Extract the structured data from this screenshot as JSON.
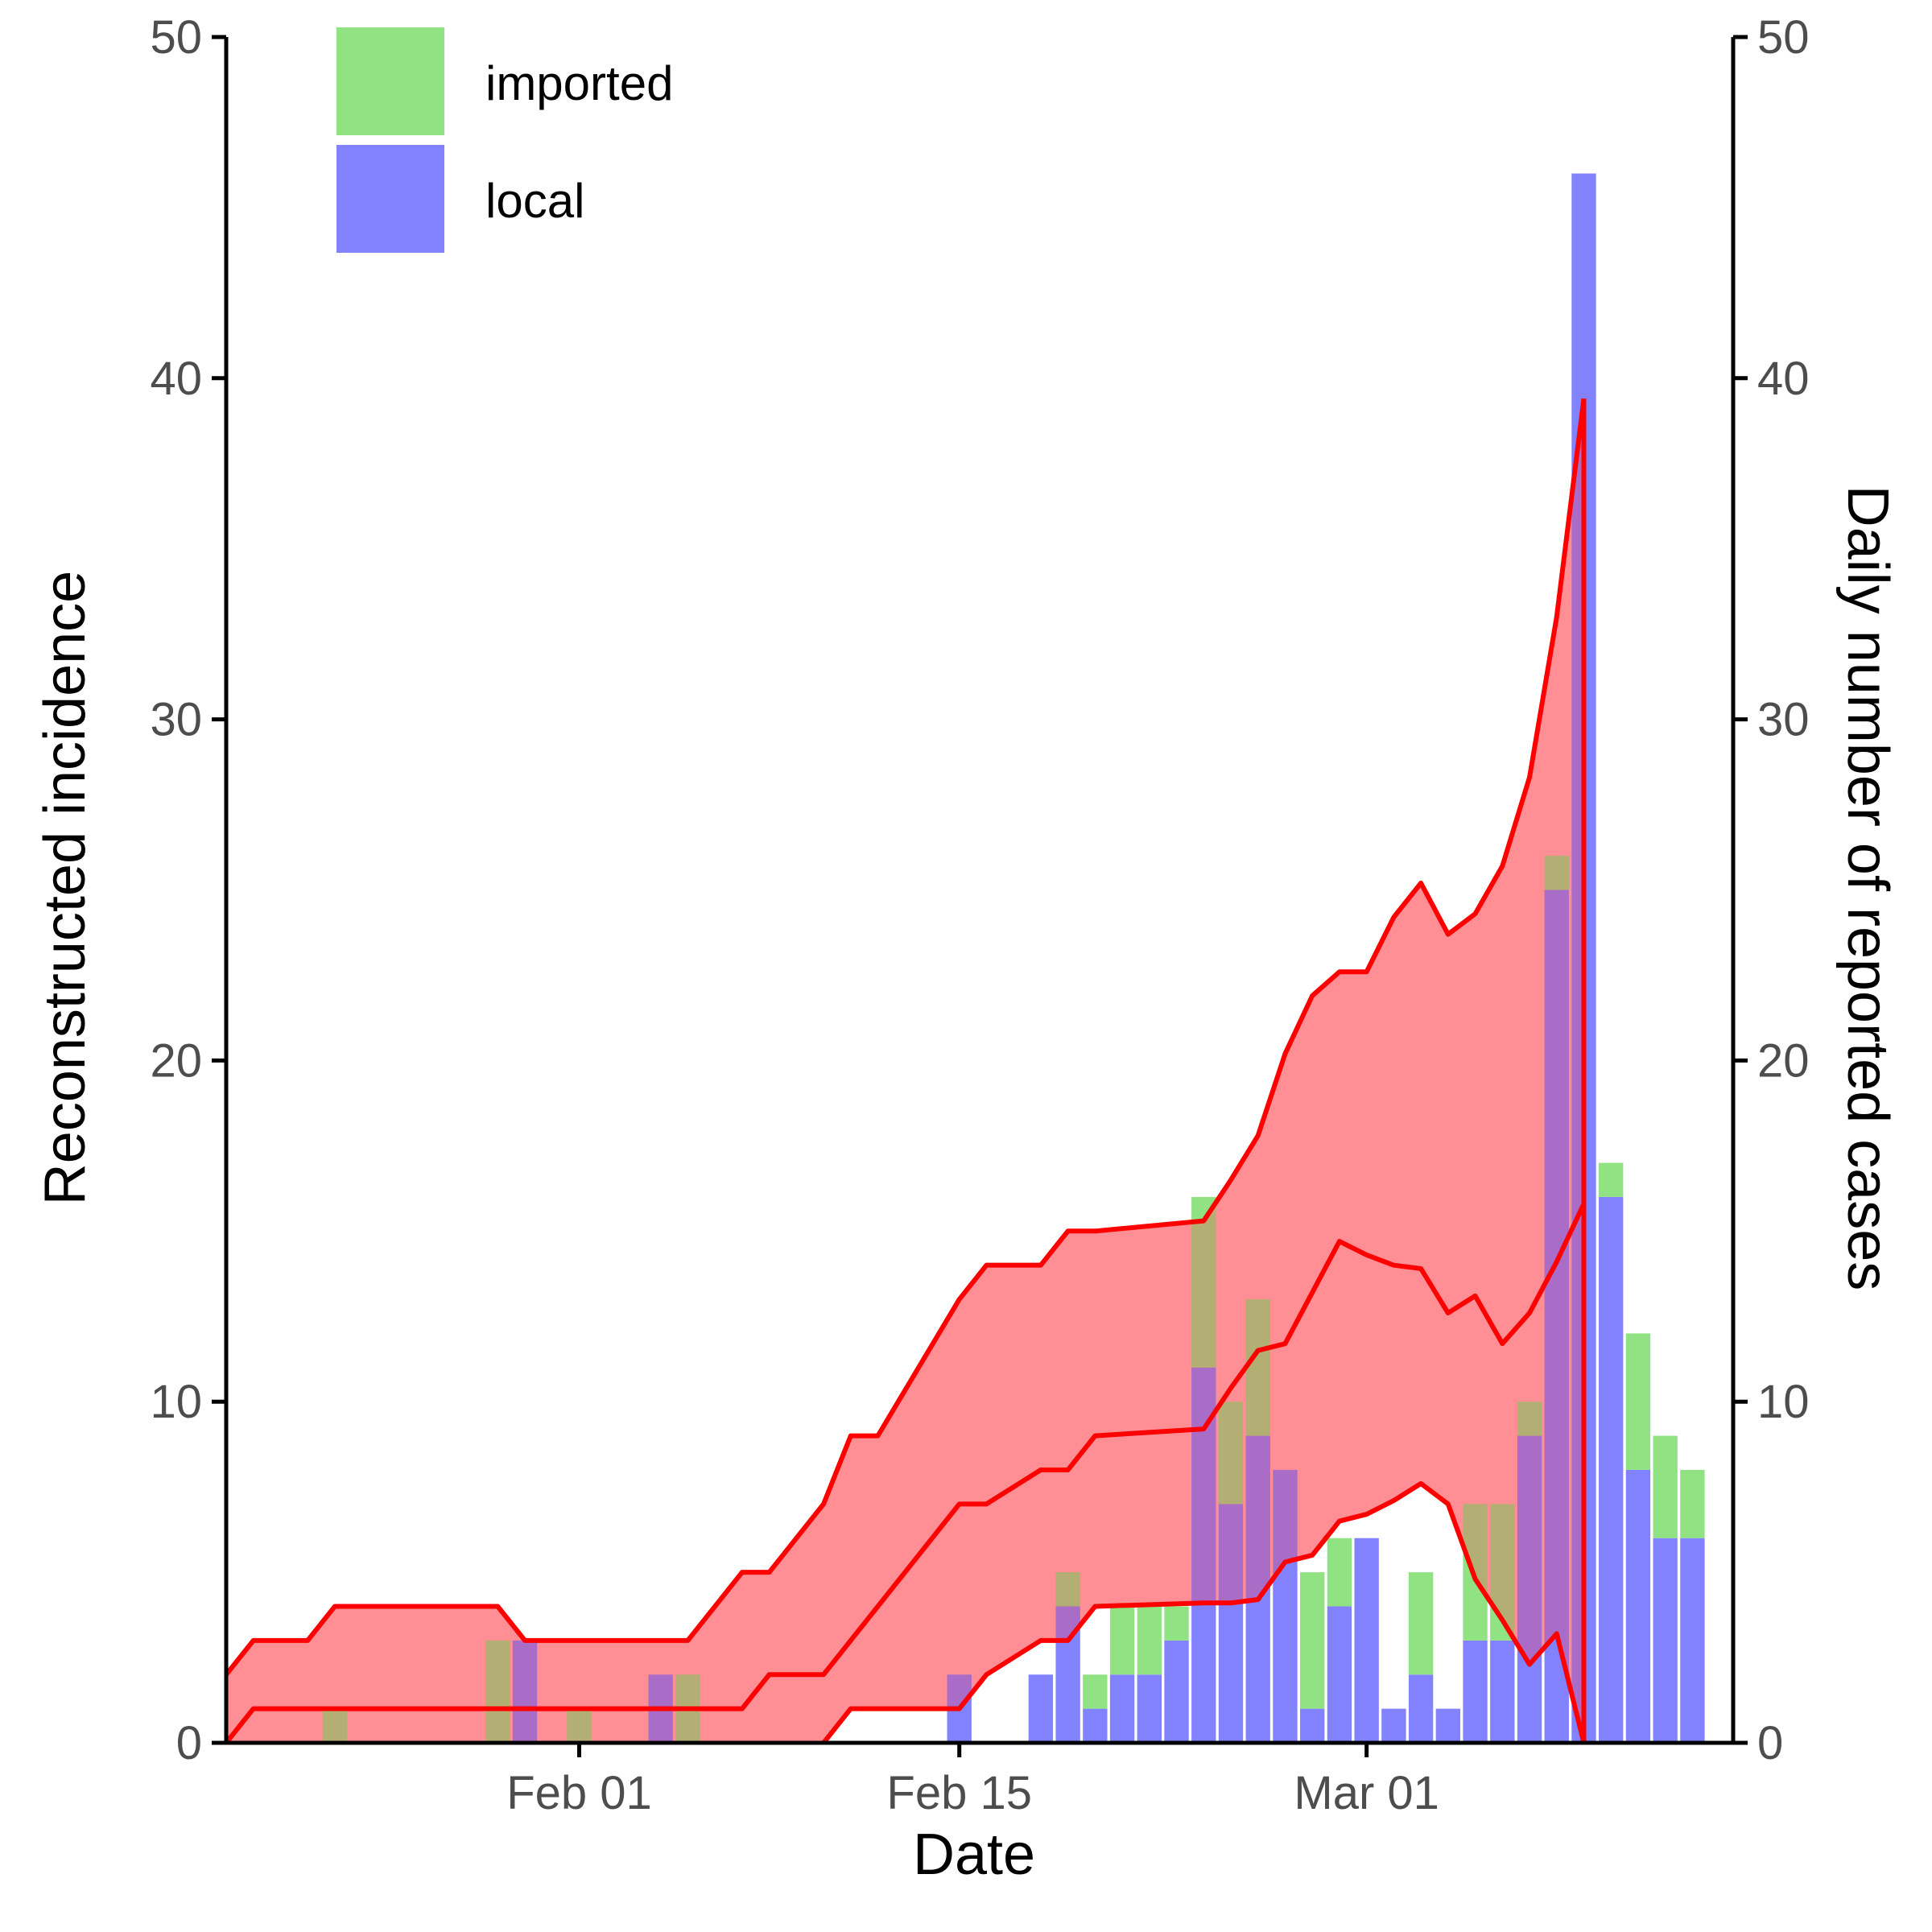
{
  "chart_data": {
    "type": "bar",
    "xlabel": "Date",
    "ylabel": "Reconstructed incidence",
    "ylabel_right": "Daily number of reported cases",
    "ylim": [
      0,
      50
    ],
    "ylim_right": [
      0,
      50
    ],
    "y_ticks": [
      0,
      10,
      20,
      30,
      40,
      50
    ],
    "x_ticks": [
      {
        "date": "2020-02-01",
        "label": "Feb 01"
      },
      {
        "date": "2020-02-15",
        "label": "Feb 15"
      },
      {
        "date": "2020-03-01",
        "label": "Mar 01"
      }
    ],
    "x_range": [
      "2020-01-19",
      "2020-03-14"
    ],
    "grid": false,
    "legend_position": "top-left",
    "legend": [
      {
        "key": "imported",
        "label": "imported",
        "color": "#90E283"
      },
      {
        "key": "local",
        "label": "local",
        "color": "#8282FF"
      }
    ],
    "band_fill_color": "#FFB3B6",
    "line_color": "#FF0000",
    "overlap_color": "#B39E5E",
    "overlap_local_color": "#A657B8",
    "bars": [
      {
        "date": "2020-01-23",
        "imported": 1,
        "local": 0
      },
      {
        "date": "2020-01-29",
        "imported": 3,
        "local": 0
      },
      {
        "date": "2020-01-30",
        "imported": 0,
        "local": 3
      },
      {
        "date": "2020-02-01",
        "imported": 1,
        "local": 0
      },
      {
        "date": "2020-02-04",
        "imported": 0,
        "local": 2
      },
      {
        "date": "2020-02-05",
        "imported": 2,
        "local": 0
      },
      {
        "date": "2020-02-15",
        "imported": 0,
        "local": 2
      },
      {
        "date": "2020-02-18",
        "imported": 0,
        "local": 2
      },
      {
        "date": "2020-02-19",
        "imported": 1,
        "local": 4
      },
      {
        "date": "2020-02-20",
        "imported": 1,
        "local": 1
      },
      {
        "date": "2020-02-21",
        "imported": 2,
        "local": 2
      },
      {
        "date": "2020-02-22",
        "imported": 2,
        "local": 2
      },
      {
        "date": "2020-02-23",
        "imported": 1,
        "local": 3
      },
      {
        "date": "2020-02-24",
        "imported": 5,
        "local": 11
      },
      {
        "date": "2020-02-25",
        "imported": 3,
        "local": 7
      },
      {
        "date": "2020-02-26",
        "imported": 4,
        "local": 9
      },
      {
        "date": "2020-02-27",
        "imported": 0,
        "local": 8
      },
      {
        "date": "2020-02-28",
        "imported": 4,
        "local": 1
      },
      {
        "date": "2020-02-29",
        "imported": 2,
        "local": 4
      },
      {
        "date": "2020-03-01",
        "imported": 0,
        "local": 6
      },
      {
        "date": "2020-03-02",
        "imported": 0,
        "local": 1
      },
      {
        "date": "2020-03-03",
        "imported": 3,
        "local": 2
      },
      {
        "date": "2020-03-04",
        "imported": 0,
        "local": 1
      },
      {
        "date": "2020-03-05",
        "imported": 4,
        "local": 3
      },
      {
        "date": "2020-03-06",
        "imported": 4,
        "local": 3
      },
      {
        "date": "2020-03-07",
        "imported": 1,
        "local": 9
      },
      {
        "date": "2020-03-08",
        "imported": 1,
        "local": 25
      },
      {
        "date": "2020-03-09",
        "imported": 0,
        "local": 46
      },
      {
        "date": "2020-03-10",
        "imported": 1,
        "local": 16
      },
      {
        "date": "2020-03-11",
        "imported": 4,
        "local": 8
      },
      {
        "date": "2020-03-12",
        "imported": 3,
        "local": 6
      },
      {
        "date": "2020-03-13",
        "imported": 2,
        "local": 6
      }
    ],
    "incidence_band": {
      "dates": [
        "2020-01-19",
        "2020-01-20",
        "2020-01-22",
        "2020-01-23",
        "2020-01-29",
        "2020-01-30",
        "2020-02-05",
        "2020-02-07",
        "2020-02-08",
        "2020-02-10",
        "2020-02-11",
        "2020-02-12",
        "2020-02-15",
        "2020-02-16",
        "2020-02-18",
        "2020-02-19",
        "2020-02-20",
        "2020-02-24",
        "2020-02-25",
        "2020-02-26",
        "2020-02-27",
        "2020-02-28",
        "2020-02-29",
        "2020-03-01",
        "2020-03-02",
        "2020-03-03",
        "2020-03-04",
        "2020-03-05",
        "2020-03-06",
        "2020-03-07",
        "2020-03-08",
        "2020-03-09"
      ],
      "upper": [
        2.0,
        3.0,
        3.0,
        4.0,
        4.0,
        3.0,
        3.0,
        5.0,
        5.0,
        7.0,
        9.0,
        9.0,
        13.0,
        14.0,
        14.0,
        15.0,
        15.0,
        15.3,
        16.5,
        17.8,
        20.2,
        21.9,
        22.6,
        22.6,
        24.2,
        25.2,
        23.7,
        24.3,
        25.7,
        28.3,
        33.0,
        39.4
      ],
      "median": [
        0.0,
        1.0,
        1.0,
        1.0,
        1.0,
        1.0,
        1.0,
        1.0,
        2.0,
        2.0,
        3.0,
        4.0,
        7.0,
        7.0,
        8.0,
        8.0,
        9.0,
        9.2,
        10.4,
        11.5,
        11.7,
        13.2,
        14.7,
        14.3,
        14.0,
        13.9,
        12.6,
        13.1,
        11.7,
        12.6,
        14.1,
        15.8
      ],
      "lower": [
        null,
        null,
        null,
        null,
        null,
        null,
        null,
        null,
        null,
        0.0,
        1.0,
        1.0,
        1.0,
        2.0,
        3.0,
        3.0,
        4.0,
        4.1,
        4.1,
        4.2,
        5.3,
        5.5,
        6.5,
        6.7,
        7.1,
        7.6,
        7.0,
        4.8,
        3.6,
        2.3,
        3.2,
        0.0
      ]
    },
    "vertical_line_date": "2020-03-09"
  }
}
